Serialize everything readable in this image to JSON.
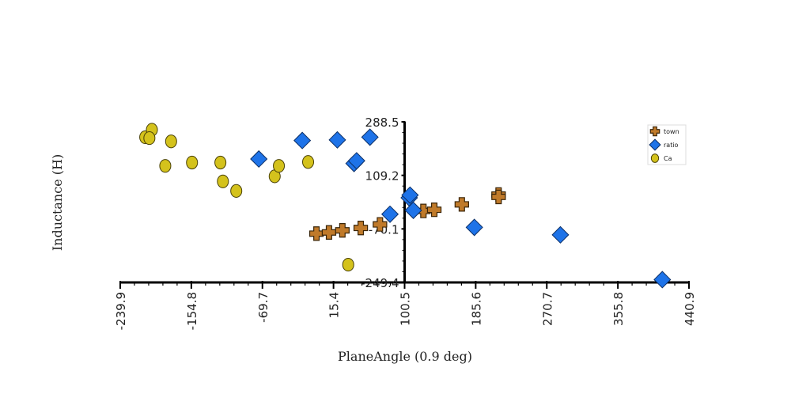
{
  "chart_data": {
    "type": "scatter",
    "xlabel": "PlaneAngle (0.9 deg)",
    "ylabel": "Inductance (H)",
    "xlim": [
      -239.9,
      440.9
    ],
    "ylim": [
      -249.4,
      288.5
    ],
    "x_ticks": [
      "-239.9",
      "-154.8",
      "-69.7",
      "15.4",
      "100.5",
      "185.6",
      "270.7",
      "355.8",
      "440.9"
    ],
    "y_ticks": [
      "288.5",
      "109.2",
      "-70.1",
      "-249.4"
    ],
    "legend_position": "top-right",
    "series": [
      {
        "name": "town",
        "marker": "plus",
        "color": "#c07a2a",
        "points": [
          {
            "x": -5,
            "y": -86
          },
          {
            "x": 10,
            "y": -82
          },
          {
            "x": 26,
            "y": -75
          },
          {
            "x": 48,
            "y": -67
          },
          {
            "x": 71,
            "y": -55
          },
          {
            "x": 123,
            "y": -10
          },
          {
            "x": 136,
            "y": -6
          },
          {
            "x": 169,
            "y": 12
          },
          {
            "x": 213,
            "y": 45
          },
          {
            "x": 213,
            "y": 37
          }
        ]
      },
      {
        "name": "ratio",
        "marker": "diamond",
        "color": "#1e73e8",
        "points": [
          {
            "x": -74,
            "y": 164
          },
          {
            "x": -22,
            "y": 226
          },
          {
            "x": 20,
            "y": 228
          },
          {
            "x": 40,
            "y": 149
          },
          {
            "x": 43,
            "y": 158
          },
          {
            "x": 59,
            "y": 237
          },
          {
            "x": 83,
            "y": -21
          },
          {
            "x": 106,
            "y": 34
          },
          {
            "x": 107,
            "y": 43
          },
          {
            "x": 111,
            "y": -8
          },
          {
            "x": 184,
            "y": -65
          },
          {
            "x": 287,
            "y": -90
          },
          {
            "x": 409,
            "y": -240
          }
        ]
      },
      {
        "name": "Ca",
        "marker": "circle",
        "color": "#d4c21c",
        "points": [
          {
            "x": -210,
            "y": 237
          },
          {
            "x": -202,
            "y": 262
          },
          {
            "x": -205,
            "y": 234
          },
          {
            "x": -179,
            "y": 223
          },
          {
            "x": -186,
            "y": 141
          },
          {
            "x": -154,
            "y": 152
          },
          {
            "x": -120,
            "y": 152
          },
          {
            "x": -117,
            "y": 89
          },
          {
            "x": -101,
            "y": 57
          },
          {
            "x": -55,
            "y": 106
          },
          {
            "x": -50,
            "y": 141
          },
          {
            "x": -15,
            "y": 154
          },
          {
            "x": 33,
            "y": -190
          }
        ]
      }
    ]
  }
}
